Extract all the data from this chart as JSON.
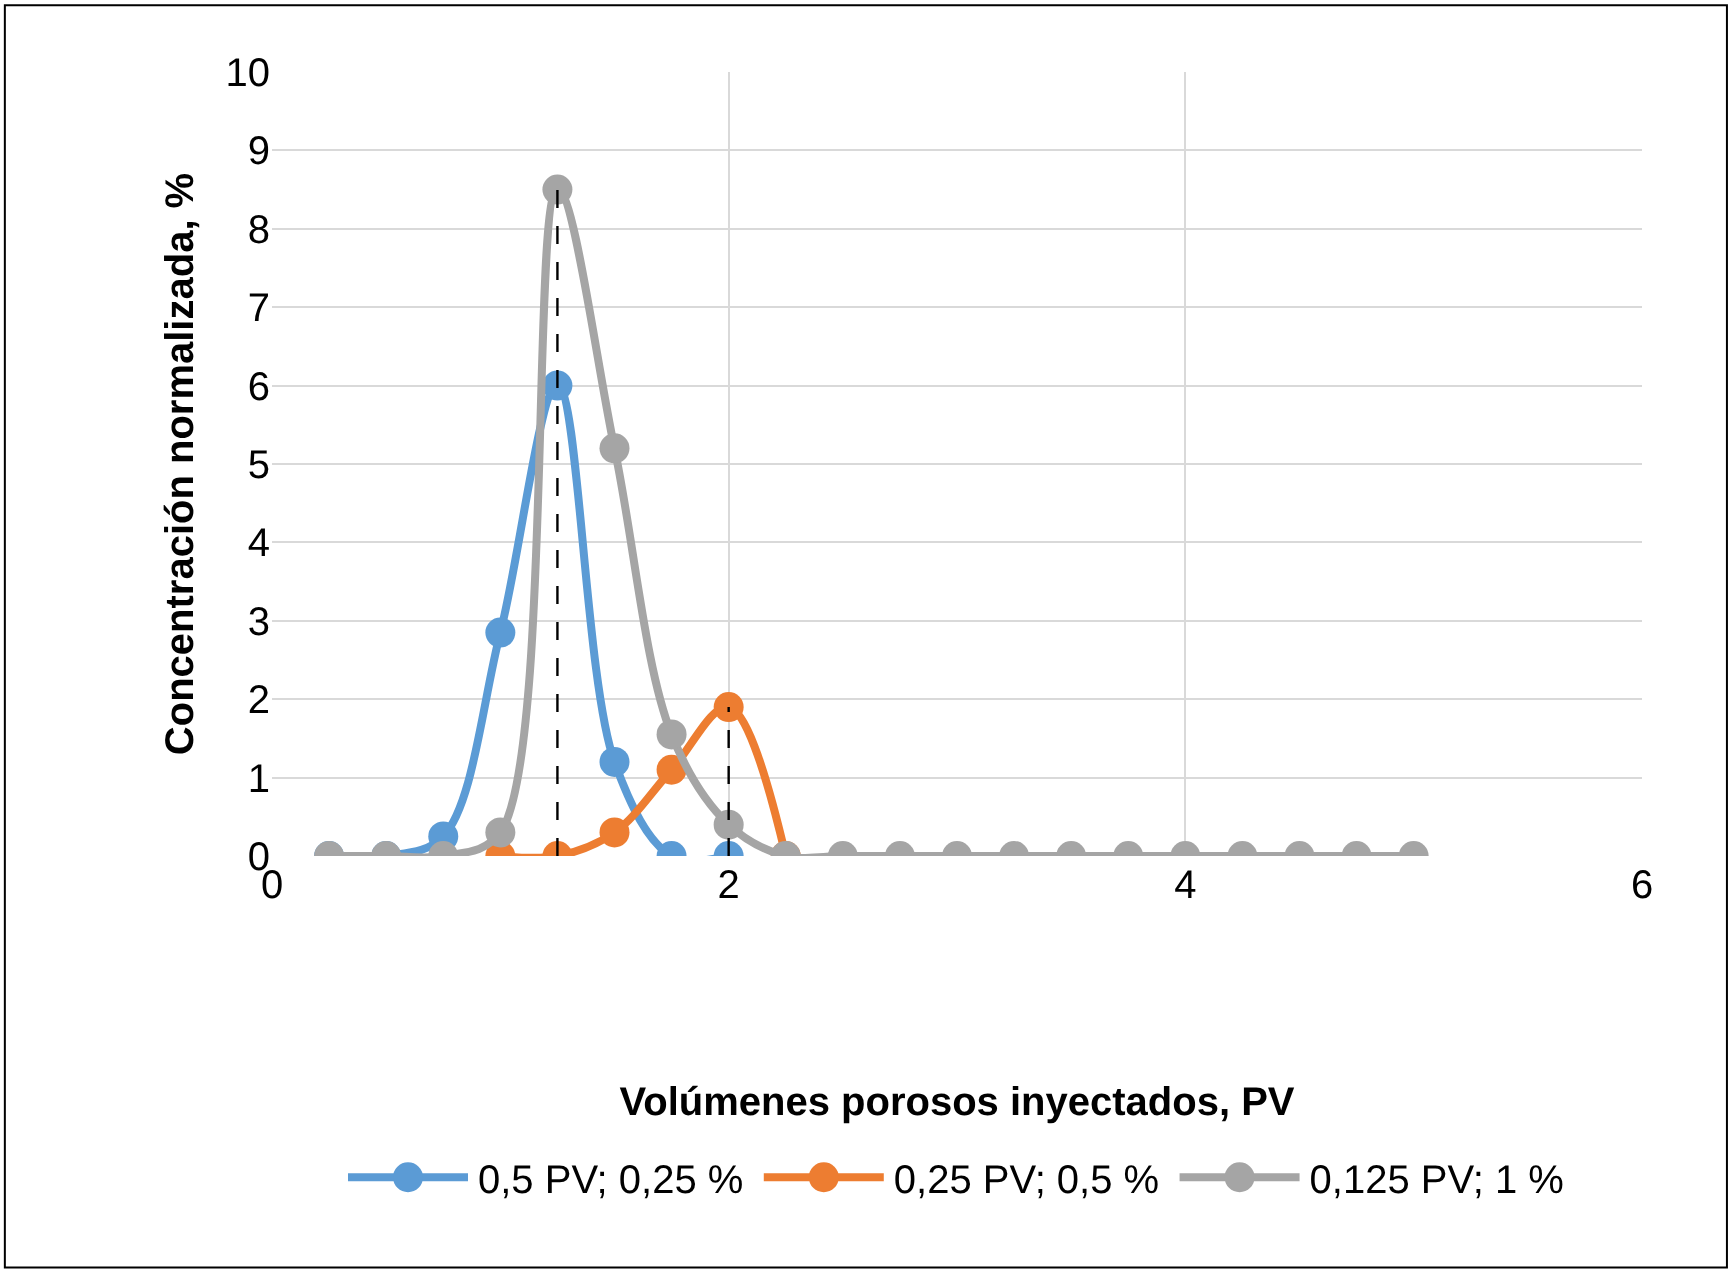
{
  "chart_data": {
    "type": "line",
    "xlabel": "Volúmenes porosos inyectados, PV",
    "ylabel": "Concentración normalizada, %",
    "xlim": [
      0,
      6
    ],
    "xticks": [
      0,
      2,
      4,
      6
    ],
    "ylim": [
      0,
      10
    ],
    "yticks": [
      0,
      1,
      2,
      3,
      4,
      5,
      6,
      7,
      8,
      9,
      10
    ],
    "grid": true,
    "legend": "bottom",
    "marker": "circle",
    "line_style": "solid",
    "series": [
      {
        "name": "0,5 PV; 0,25 %",
        "color": "#5b9bd5",
        "x": [
          0.25,
          0.5,
          0.75,
          1.0,
          1.25,
          1.5,
          1.75,
          2.0
        ],
        "values": [
          0,
          0,
          0.25,
          2.85,
          6.0,
          1.2,
          0,
          0
        ]
      },
      {
        "name": "0,25 PV; 0,5 %",
        "color": "#ed7d31",
        "x": [
          1.0,
          1.25,
          1.5,
          1.75,
          2.0,
          2.25
        ],
        "values": [
          0,
          0,
          0.3,
          1.1,
          1.9,
          0
        ]
      },
      {
        "name": "0,125 PV; 1 %",
        "color": "#a5a5a5",
        "x": [
          0.25,
          0.5,
          0.75,
          1.0,
          1.25,
          1.5,
          1.75,
          2.0,
          2.25,
          2.5,
          2.75,
          3.0,
          3.25,
          3.5,
          3.75,
          4.0,
          4.25,
          4.5,
          4.75,
          5.0
        ],
        "values": [
          0,
          0,
          0,
          0.3,
          8.5,
          5.2,
          1.55,
          0.4,
          0,
          0,
          0,
          0,
          0,
          0,
          0,
          0,
          0,
          0,
          0,
          0
        ]
      },
      {
        "color": "#000000",
        "x": [
          1.25,
          1.25
        ],
        "values": [
          0,
          8.5
        ],
        "marker": "none",
        "line_style": "dashed"
      },
      {
        "color": "#000000",
        "x": [
          2.0,
          2.0
        ],
        "values": [
          0,
          1.9
        ],
        "marker": "none",
        "line_style": "dashed"
      }
    ]
  }
}
